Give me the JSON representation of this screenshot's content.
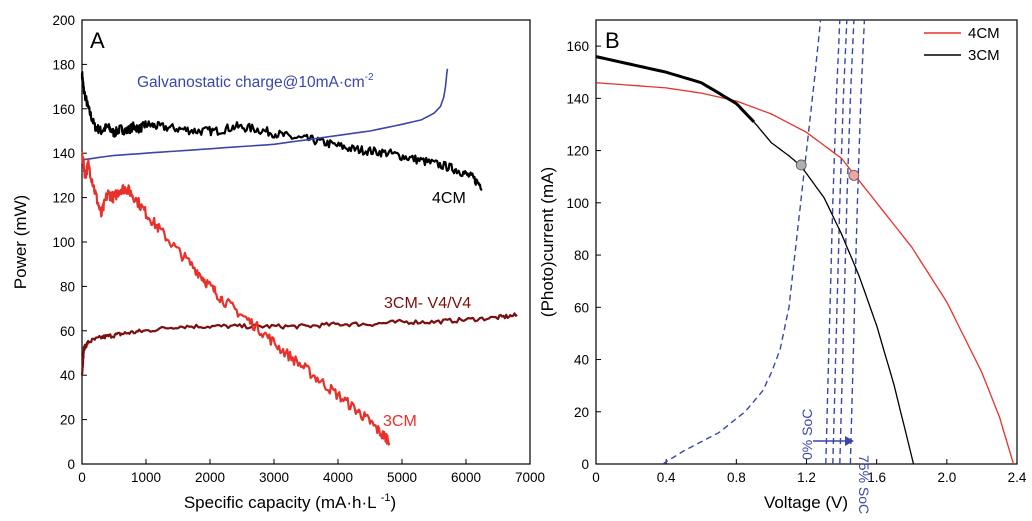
{
  "chart_data": [
    {
      "panel": "A",
      "type": "line",
      "xlabel": "Specific capacity (mA·h·L⁻¹)",
      "ylabel": "Power (mW)",
      "xlim": [
        0,
        7000
      ],
      "ylim": [
        0,
        200
      ],
      "xticks": [
        "0",
        "1000",
        "2000",
        "3000",
        "4000",
        "5000",
        "6000",
        "7000"
      ],
      "yticks": [
        "0",
        "20",
        "40",
        "60",
        "80",
        "100",
        "120",
        "140",
        "160",
        "180",
        "200"
      ],
      "grid": false,
      "annotations": [
        {
          "text": "Galvanostatic charge@10mA·cm",
          "sup": "-2",
          "color": "#3a47a6"
        },
        {
          "text": "4CM",
          "color": "#000000"
        },
        {
          "text": "3CM- V4/V4",
          "color": "#7a1010"
        },
        {
          "text": "3CM",
          "color": "#e8312a"
        }
      ],
      "series": [
        {
          "color": "#000000",
          "noise": 2,
          "points": [
            [
              0,
              176
            ],
            [
              30,
              168
            ],
            [
              100,
              160
            ],
            [
              200,
              152
            ],
            [
              300,
              150
            ],
            [
              400,
              152
            ],
            [
              500,
              149
            ],
            [
              600,
              151
            ],
            [
              700,
              150
            ],
            [
              800,
              152
            ],
            [
              900,
              151
            ],
            [
              1000,
              153
            ],
            [
              1200,
              152
            ],
            [
              1500,
              151
            ],
            [
              1800,
              150
            ],
            [
              2100,
              150
            ],
            [
              2400,
              152
            ],
            [
              2700,
              151
            ],
            [
              3000,
              149
            ],
            [
              3300,
              147
            ],
            [
              3600,
              146
            ],
            [
              3900,
              144
            ],
            [
              4200,
              142
            ],
            [
              4500,
              141
            ],
            [
              4800,
              140
            ],
            [
              5100,
              138
            ],
            [
              5400,
              136
            ],
            [
              5700,
              134
            ],
            [
              5900,
              132
            ],
            [
              6100,
              129
            ],
            [
              6250,
              125
            ]
          ]
        },
        {
          "color": "#3a47a6",
          "noise": 0,
          "points": [
            [
              0,
              137
            ],
            [
              500,
              139
            ],
            [
              1000,
              140
            ],
            [
              1500,
              141
            ],
            [
              2000,
              142
            ],
            [
              2500,
              143
            ],
            [
              3000,
              144
            ],
            [
              3500,
              146
            ],
            [
              4000,
              148
            ],
            [
              4500,
              150
            ],
            [
              5000,
              153
            ],
            [
              5300,
              155
            ],
            [
              5500,
              158
            ],
            [
              5600,
              161
            ],
            [
              5650,
              165
            ],
            [
              5680,
              170
            ],
            [
              5700,
              176
            ],
            [
              5710,
              178
            ]
          ]
        },
        {
          "color": "#7a1010",
          "noise": 1,
          "points": [
            [
              0,
              40
            ],
            [
              30,
              52
            ],
            [
              100,
              55
            ],
            [
              300,
              57
            ],
            [
              500,
              58
            ],
            [
              700,
              59
            ],
            [
              1000,
              60
            ],
            [
              1500,
              62
            ],
            [
              2000,
              62
            ],
            [
              2500,
              62
            ],
            [
              3000,
              62
            ],
            [
              3500,
              62
            ],
            [
              4000,
              63
            ],
            [
              4500,
              63
            ],
            [
              5000,
              64
            ],
            [
              5500,
              64
            ],
            [
              6000,
              65
            ],
            [
              6500,
              66
            ],
            [
              6800,
              67
            ]
          ]
        },
        {
          "color": "#e8312a",
          "noise": 2.5,
          "points": [
            [
              0,
              140
            ],
            [
              50,
              130
            ],
            [
              100,
              135
            ],
            [
              200,
              123
            ],
            [
              300,
              112
            ],
            [
              400,
              122
            ],
            [
              500,
              120
            ],
            [
              600,
              124
            ],
            [
              700,
              124
            ],
            [
              800,
              121
            ],
            [
              1000,
              113
            ],
            [
              1200,
              106
            ],
            [
              1500,
              96
            ],
            [
              1800,
              87
            ],
            [
              2000,
              80
            ],
            [
              2200,
              74
            ],
            [
              2500,
              67
            ],
            [
              2800,
              60
            ],
            [
              3100,
              52
            ],
            [
              3400,
              45
            ],
            [
              3700,
              38
            ],
            [
              4000,
              31
            ],
            [
              4300,
              24
            ],
            [
              4500,
              19
            ],
            [
              4700,
              13
            ],
            [
              4800,
              11
            ]
          ]
        }
      ]
    },
    {
      "panel": "B",
      "type": "line",
      "xlabel": "Voltage (V)",
      "ylabel": "(Photo)current (mA)",
      "xlim": [
        0,
        2.4
      ],
      "ylim": [
        0,
        170
      ],
      "xticks": [
        "0",
        "0.4",
        "0.8",
        "1.2",
        "1.6",
        "2.0",
        "2.4"
      ],
      "yticks": [
        "0",
        "20",
        "40",
        "60",
        "80",
        "100",
        "120",
        "140",
        "160"
      ],
      "grid": false,
      "legend": {
        "position": "top-right",
        "entries": [
          {
            "name": "4CM",
            "color": "#e8312a"
          },
          {
            "name": "3CM",
            "color": "#000000"
          }
        ]
      },
      "annotations": [
        {
          "text": "0% SoC",
          "color": "#3a47a6"
        },
        {
          "text": "75% SoC",
          "color": "#3a47a6"
        }
      ],
      "series": [
        {
          "name": "4CM",
          "color": "#e8312a",
          "noise": 0,
          "points": [
            [
              0,
              146
            ],
            [
              0.2,
              145
            ],
            [
              0.4,
              144
            ],
            [
              0.6,
              142
            ],
            [
              0.8,
              139
            ],
            [
              1.0,
              134
            ],
            [
              1.2,
              127
            ],
            [
              1.4,
              117
            ],
            [
              1.47,
              111
            ],
            [
              1.6,
              100
            ],
            [
              1.8,
              83
            ],
            [
              2.0,
              62
            ],
            [
              2.2,
              35
            ],
            [
              2.3,
              18
            ],
            [
              2.38,
              0
            ]
          ]
        },
        {
          "name": "3CM",
          "color": "#000000",
          "noise": 0,
          "points": [
            [
              0,
              156
            ],
            [
              0.2,
              153
            ],
            [
              0.4,
              150
            ],
            [
              0.6,
              146
            ],
            [
              0.8,
              138
            ],
            [
              0.9,
              131
            ],
            [
              1.0,
              123
            ],
            [
              1.1,
              118
            ],
            [
              1.17,
              114
            ],
            [
              1.3,
              102
            ],
            [
              1.4,
              88
            ],
            [
              1.5,
              72
            ],
            [
              1.6,
              53
            ],
            [
              1.7,
              30
            ],
            [
              1.81,
              0
            ]
          ]
        }
      ],
      "soc_curves": [
        {
          "color": "#3a47a6",
          "points": [
            [
              0.38,
              0
            ],
            [
              0.5,
              5
            ],
            [
              0.7,
              12
            ],
            [
              0.85,
              20
            ],
            [
              0.95,
              28
            ],
            [
              1.0,
              35
            ],
            [
              1.05,
              44
            ],
            [
              1.1,
              60
            ],
            [
              1.15,
              90
            ],
            [
              1.2,
              120
            ],
            [
              1.25,
              150
            ],
            [
              1.28,
              170
            ]
          ]
        },
        {
          "color": "#3a47a6",
          "points": [
            [
              1.31,
              0
            ],
            [
              1.33,
              50
            ],
            [
              1.35,
              100
            ],
            [
              1.37,
              140
            ],
            [
              1.39,
              170
            ]
          ]
        },
        {
          "color": "#3a47a6",
          "points": [
            [
              1.35,
              0
            ],
            [
              1.37,
              50
            ],
            [
              1.39,
              100
            ],
            [
              1.41,
              140
            ],
            [
              1.43,
              170
            ]
          ]
        },
        {
          "color": "#3a47a6",
          "points": [
            [
              1.39,
              0
            ],
            [
              1.41,
              50
            ],
            [
              1.43,
              100
            ],
            [
              1.45,
              140
            ],
            [
              1.47,
              170
            ]
          ]
        },
        {
          "color": "#3a47a6",
          "points": [
            [
              1.45,
              0
            ],
            [
              1.47,
              50
            ],
            [
              1.49,
              100
            ],
            [
              1.51,
              140
            ],
            [
              1.53,
              170
            ]
          ]
        }
      ],
      "markers": [
        {
          "x": 1.17,
          "y": 114.5,
          "color": "#b0b0b0"
        },
        {
          "x": 1.47,
          "y": 110.5,
          "color": "#f0a6a6"
        }
      ]
    }
  ]
}
